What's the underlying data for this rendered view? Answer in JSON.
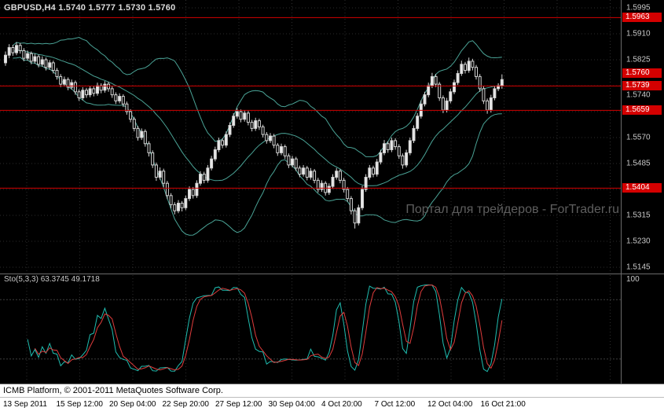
{
  "header": {
    "title": "GBPUSD,H4 1.5740 1.5777 1.5730 1.5760"
  },
  "watermark": {
    "text": "Портал для трейдеров - ForTrader.ru"
  },
  "price_axis": {
    "grid_labels": [
      "1.5995",
      "1.5910",
      "1.5825",
      "1.5740",
      "1.5570",
      "1.5485",
      "1.5315",
      "1.5230",
      "1.5145"
    ],
    "line_labels": [
      "1.5963",
      "1.5739",
      "1.5659",
      "1.5404"
    ],
    "current_price": "1.5760"
  },
  "stochastic": {
    "label": "Sto(5,3,3)",
    "value_main": "63.3745",
    "value_signal": "49.1718",
    "axis_top": "100",
    "levels": [
      20,
      80
    ]
  },
  "status_bar": {
    "text": "ICMB Platform, © 2001-2011 MetaQuotes Software Corp."
  },
  "colors": {
    "background": "#000000",
    "grid": "#2d2d2d",
    "candle_bull": "#e8e8e8",
    "candle_bear": "#000000",
    "candle_outline": "#d4d4d4",
    "bollinger": "#4aa396",
    "hline": "#d40000",
    "sto_main": "#1fbdb0",
    "sto_signal": "#e03c3c",
    "sto_level": "#3e3e3e",
    "axis_text": "#c9c9c9",
    "label_box_bg": "#d40000",
    "label_box_text": "#ffffff",
    "separator": "#6a6a6a",
    "watermark": "#5e5e5e",
    "status_bg": "#ffffff",
    "status_text": "#000000"
  },
  "chart_data": {
    "type": "candlestick",
    "symbol": "GBPUSD",
    "timeframe": "H4",
    "title": "GBPUSD,H4",
    "price_grid": {
      "top": 1.5995,
      "bottom": 1.5145,
      "step": 0.0085
    },
    "hlines": [
      1.5963,
      1.5739,
      1.5659,
      1.5404
    ],
    "current_price": 1.576,
    "indicators": {
      "bollinger": {
        "period": 20,
        "deviation": 2
      },
      "stochastic": {
        "k_period": 5,
        "d_period": 3,
        "slowing": 3
      }
    },
    "time_labels": [
      "13 Sep 2011",
      "15 Sep 12:00",
      "20 Sep 04:00",
      "22 Sep 20:00",
      "27 Sep 12:00",
      "30 Sep 04:00",
      "4 Oct 20:00",
      "7 Oct 12:00",
      "12 Oct 04:00",
      "16 Oct 21:00"
    ],
    "ohlc": [
      [
        1.5815,
        1.5852,
        1.5805,
        1.584
      ],
      [
        1.584,
        1.5876,
        1.583,
        1.5865
      ],
      [
        1.5865,
        1.5874,
        1.5838,
        1.5848
      ],
      [
        1.5848,
        1.5883,
        1.584,
        1.5872
      ],
      [
        1.5872,
        1.588,
        1.5845,
        1.5855
      ],
      [
        1.5855,
        1.5863,
        1.582,
        1.583
      ],
      [
        1.583,
        1.5855,
        1.5822,
        1.5845
      ],
      [
        1.5845,
        1.5852,
        1.581,
        1.582
      ],
      [
        1.582,
        1.5845,
        1.5812,
        1.5835
      ],
      [
        1.5835,
        1.5842,
        1.58,
        1.581
      ],
      [
        1.581,
        1.5836,
        1.5802,
        1.5825
      ],
      [
        1.5825,
        1.5832,
        1.579,
        1.58
      ],
      [
        1.58,
        1.5824,
        1.5792,
        1.5815
      ],
      [
        1.5815,
        1.5822,
        1.578,
        1.579
      ],
      [
        1.579,
        1.5798,
        1.576,
        1.577
      ],
      [
        1.577,
        1.5778,
        1.5735,
        1.5745
      ],
      [
        1.5745,
        1.577,
        1.5737,
        1.576
      ],
      [
        1.576,
        1.5767,
        1.5725,
        1.5735
      ],
      [
        1.5735,
        1.576,
        1.5727,
        1.575
      ],
      [
        1.575,
        1.5757,
        1.571,
        1.572
      ],
      [
        1.572,
        1.5728,
        1.569,
        1.57
      ],
      [
        1.57,
        1.5735,
        1.5692,
        1.5725
      ],
      [
        1.5725,
        1.5733,
        1.57,
        1.571
      ],
      [
        1.571,
        1.574,
        1.5702,
        1.573
      ],
      [
        1.573,
        1.5738,
        1.5705,
        1.5715
      ],
      [
        1.5715,
        1.575,
        1.5707,
        1.574
      ],
      [
        1.574,
        1.5748,
        1.5715,
        1.5725
      ],
      [
        1.5725,
        1.5755,
        1.5717,
        1.5745
      ],
      [
        1.5745,
        1.5753,
        1.572,
        1.573
      ],
      [
        1.573,
        1.5738,
        1.57,
        1.571
      ],
      [
        1.571,
        1.5718,
        1.568,
        1.569
      ],
      [
        1.569,
        1.5715,
        1.5682,
        1.5705
      ],
      [
        1.5705,
        1.5712,
        1.567,
        1.568
      ],
      [
        1.568,
        1.5688,
        1.5645,
        1.5655
      ],
      [
        1.5655,
        1.5663,
        1.562,
        1.563
      ],
      [
        1.563,
        1.5638,
        1.559,
        1.56
      ],
      [
        1.56,
        1.5608,
        1.556,
        1.557
      ],
      [
        1.557,
        1.56,
        1.5562,
        1.559
      ],
      [
        1.559,
        1.5597,
        1.554,
        1.555
      ],
      [
        1.555,
        1.5558,
        1.5508,
        1.552
      ],
      [
        1.552,
        1.5528,
        1.547,
        1.548
      ],
      [
        1.548,
        1.5488,
        1.5428,
        1.544
      ],
      [
        1.544,
        1.5472,
        1.5432,
        1.546
      ],
      [
        1.546,
        1.5468,
        1.5408,
        1.542
      ],
      [
        1.542,
        1.5428,
        1.5368,
        1.538
      ],
      [
        1.538,
        1.5388,
        1.5338,
        1.535
      ],
      [
        1.535,
        1.5358,
        1.5318,
        1.533
      ],
      [
        1.533,
        1.5365,
        1.5322,
        1.5355
      ],
      [
        1.5355,
        1.5362,
        1.5328,
        1.534
      ],
      [
        1.534,
        1.538,
        1.5332,
        1.537
      ],
      [
        1.537,
        1.541,
        1.5362,
        1.54
      ],
      [
        1.54,
        1.5408,
        1.537,
        1.538
      ],
      [
        1.538,
        1.543,
        1.5372,
        1.542
      ],
      [
        1.542,
        1.546,
        1.5412,
        1.545
      ],
      [
        1.545,
        1.5458,
        1.542,
        1.543
      ],
      [
        1.543,
        1.548,
        1.5422,
        1.547
      ],
      [
        1.547,
        1.551,
        1.5462,
        1.55
      ],
      [
        1.55,
        1.554,
        1.5492,
        1.553
      ],
      [
        1.553,
        1.557,
        1.5522,
        1.556
      ],
      [
        1.556,
        1.5568,
        1.5535,
        1.5545
      ],
      [
        1.5545,
        1.559,
        1.5537,
        1.558
      ],
      [
        1.558,
        1.562,
        1.5572,
        1.561
      ],
      [
        1.561,
        1.565,
        1.5602,
        1.564
      ],
      [
        1.564,
        1.5666,
        1.5632,
        1.5655
      ],
      [
        1.5655,
        1.5662,
        1.562,
        1.563
      ],
      [
        1.563,
        1.566,
        1.5622,
        1.565
      ],
      [
        1.565,
        1.5657,
        1.561,
        1.562
      ],
      [
        1.562,
        1.5628,
        1.559,
        1.56
      ],
      [
        1.56,
        1.5635,
        1.5592,
        1.5625
      ],
      [
        1.5625,
        1.5632,
        1.5595,
        1.5605
      ],
      [
        1.5605,
        1.5612,
        1.557,
        1.558
      ],
      [
        1.558,
        1.5588,
        1.555,
        1.556
      ],
      [
        1.556,
        1.5585,
        1.5552,
        1.5575
      ],
      [
        1.5575,
        1.5582,
        1.5535,
        1.5545
      ],
      [
        1.5545,
        1.5552,
        1.551,
        1.552
      ],
      [
        1.552,
        1.555,
        1.5512,
        1.554
      ],
      [
        1.554,
        1.5547,
        1.55,
        1.551
      ],
      [
        1.551,
        1.5518,
        1.547,
        1.548
      ],
      [
        1.548,
        1.551,
        1.5472,
        1.55
      ],
      [
        1.55,
        1.5507,
        1.546,
        1.547
      ],
      [
        1.547,
        1.5478,
        1.544,
        1.545
      ],
      [
        1.545,
        1.548,
        1.5442,
        1.547
      ],
      [
        1.547,
        1.5477,
        1.543,
        1.544
      ],
      [
        1.544,
        1.547,
        1.5432,
        1.546
      ],
      [
        1.546,
        1.5467,
        1.542,
        1.543
      ],
      [
        1.543,
        1.5438,
        1.539,
        1.54
      ],
      [
        1.54,
        1.543,
        1.5392,
        1.542
      ],
      [
        1.542,
        1.5427,
        1.538,
        1.539
      ],
      [
        1.539,
        1.542,
        1.5382,
        1.541
      ],
      [
        1.541,
        1.545,
        1.5402,
        1.544
      ],
      [
        1.544,
        1.547,
        1.5432,
        1.546
      ],
      [
        1.546,
        1.5467,
        1.542,
        1.543
      ],
      [
        1.543,
        1.5438,
        1.539,
        1.54
      ],
      [
        1.54,
        1.5408,
        1.536,
        1.537
      ],
      [
        1.537,
        1.5378,
        1.5318,
        1.533
      ],
      [
        1.533,
        1.5338,
        1.5272,
        1.529
      ],
      [
        1.529,
        1.535,
        1.5282,
        1.534
      ],
      [
        1.534,
        1.5412,
        1.5332,
        1.54
      ],
      [
        1.54,
        1.545,
        1.5392,
        1.544
      ],
      [
        1.544,
        1.548,
        1.5432,
        1.547
      ],
      [
        1.547,
        1.5478,
        1.544,
        1.545
      ],
      [
        1.545,
        1.55,
        1.5442,
        1.549
      ],
      [
        1.549,
        1.553,
        1.5482,
        1.552
      ],
      [
        1.552,
        1.5562,
        1.5512,
        1.555
      ],
      [
        1.555,
        1.5558,
        1.552,
        1.553
      ],
      [
        1.553,
        1.557,
        1.5522,
        1.556
      ],
      [
        1.556,
        1.5568,
        1.553,
        1.554
      ],
      [
        1.554,
        1.5548,
        1.55,
        1.551
      ],
      [
        1.551,
        1.5518,
        1.5468,
        1.548
      ],
      [
        1.548,
        1.553,
        1.5472,
        1.552
      ],
      [
        1.552,
        1.557,
        1.5512,
        1.556
      ],
      [
        1.556,
        1.561,
        1.5552,
        1.56
      ],
      [
        1.56,
        1.565,
        1.5592,
        1.564
      ],
      [
        1.564,
        1.5692,
        1.5632,
        1.568
      ],
      [
        1.568,
        1.572,
        1.5672,
        1.571
      ],
      [
        1.571,
        1.575,
        1.5702,
        1.574
      ],
      [
        1.574,
        1.5782,
        1.5732,
        1.577
      ],
      [
        1.577,
        1.5778,
        1.5735,
        1.5745
      ],
      [
        1.5745,
        1.5752,
        1.569,
        1.57
      ],
      [
        1.57,
        1.5708,
        1.565,
        1.566
      ],
      [
        1.566,
        1.57,
        1.5652,
        1.569
      ],
      [
        1.569,
        1.573,
        1.5682,
        1.572
      ],
      [
        1.572,
        1.576,
        1.5712,
        1.575
      ],
      [
        1.575,
        1.579,
        1.5742,
        1.578
      ],
      [
        1.578,
        1.5822,
        1.5772,
        1.581
      ],
      [
        1.581,
        1.5818,
        1.578,
        1.579
      ],
      [
        1.579,
        1.5832,
        1.5782,
        1.582
      ],
      [
        1.582,
        1.5828,
        1.579,
        1.58
      ],
      [
        1.58,
        1.5808,
        1.576,
        1.577
      ],
      [
        1.577,
        1.5778,
        1.572,
        1.573
      ],
      [
        1.573,
        1.5738,
        1.568,
        1.569
      ],
      [
        1.569,
        1.5698,
        1.5648,
        1.566
      ],
      [
        1.566,
        1.571,
        1.5652,
        1.57
      ],
      [
        1.57,
        1.574,
        1.5692,
        1.573
      ],
      [
        1.573,
        1.5748,
        1.5722,
        1.574
      ],
      [
        1.574,
        1.5777,
        1.573,
        1.576
      ]
    ]
  }
}
